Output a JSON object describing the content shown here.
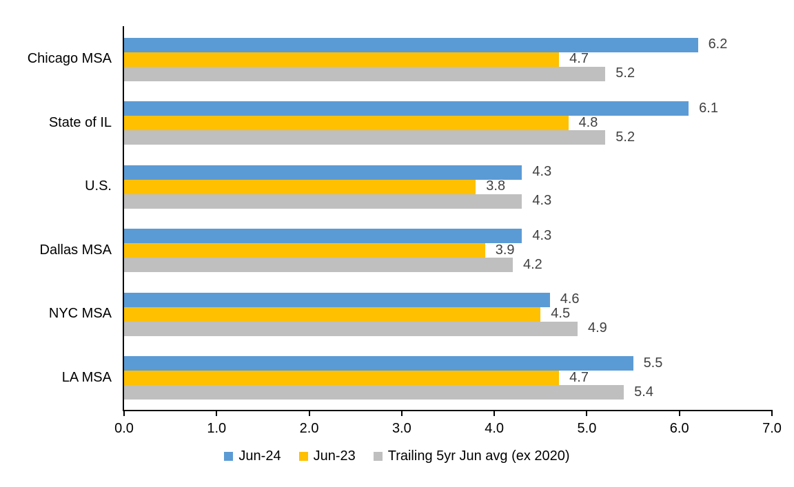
{
  "chart_data": {
    "type": "bar",
    "orientation": "horizontal",
    "title": "",
    "categories": [
      "Chicago MSA",
      "State of IL",
      "U.S.",
      "Dallas MSA",
      "NYC MSA",
      "LA MSA"
    ],
    "series": [
      {
        "name": "Jun-24",
        "color": "#5B9BD5",
        "values": [
          6.2,
          6.1,
          4.3,
          4.3,
          4.6,
          5.5
        ]
      },
      {
        "name": "Jun-23",
        "color": "#FFC000",
        "values": [
          4.7,
          4.8,
          3.8,
          3.9,
          4.5,
          4.7
        ]
      },
      {
        "name": "Trailing 5yr Jun avg (ex 2020)",
        "color": "#BFBFBF",
        "values": [
          5.2,
          5.2,
          4.3,
          4.2,
          4.9,
          5.4
        ]
      }
    ],
    "xlim": [
      0.0,
      7.0
    ],
    "x_ticks": [
      "0.0",
      "1.0",
      "2.0",
      "3.0",
      "4.0",
      "5.0",
      "6.0",
      "7.0"
    ],
    "grid": false,
    "data_labels": true,
    "legend_position": "bottom",
    "colors": {
      "axis": "#000000",
      "value_label": "#404040",
      "tick_label": "#000000",
      "category_label": "#000000"
    }
  }
}
